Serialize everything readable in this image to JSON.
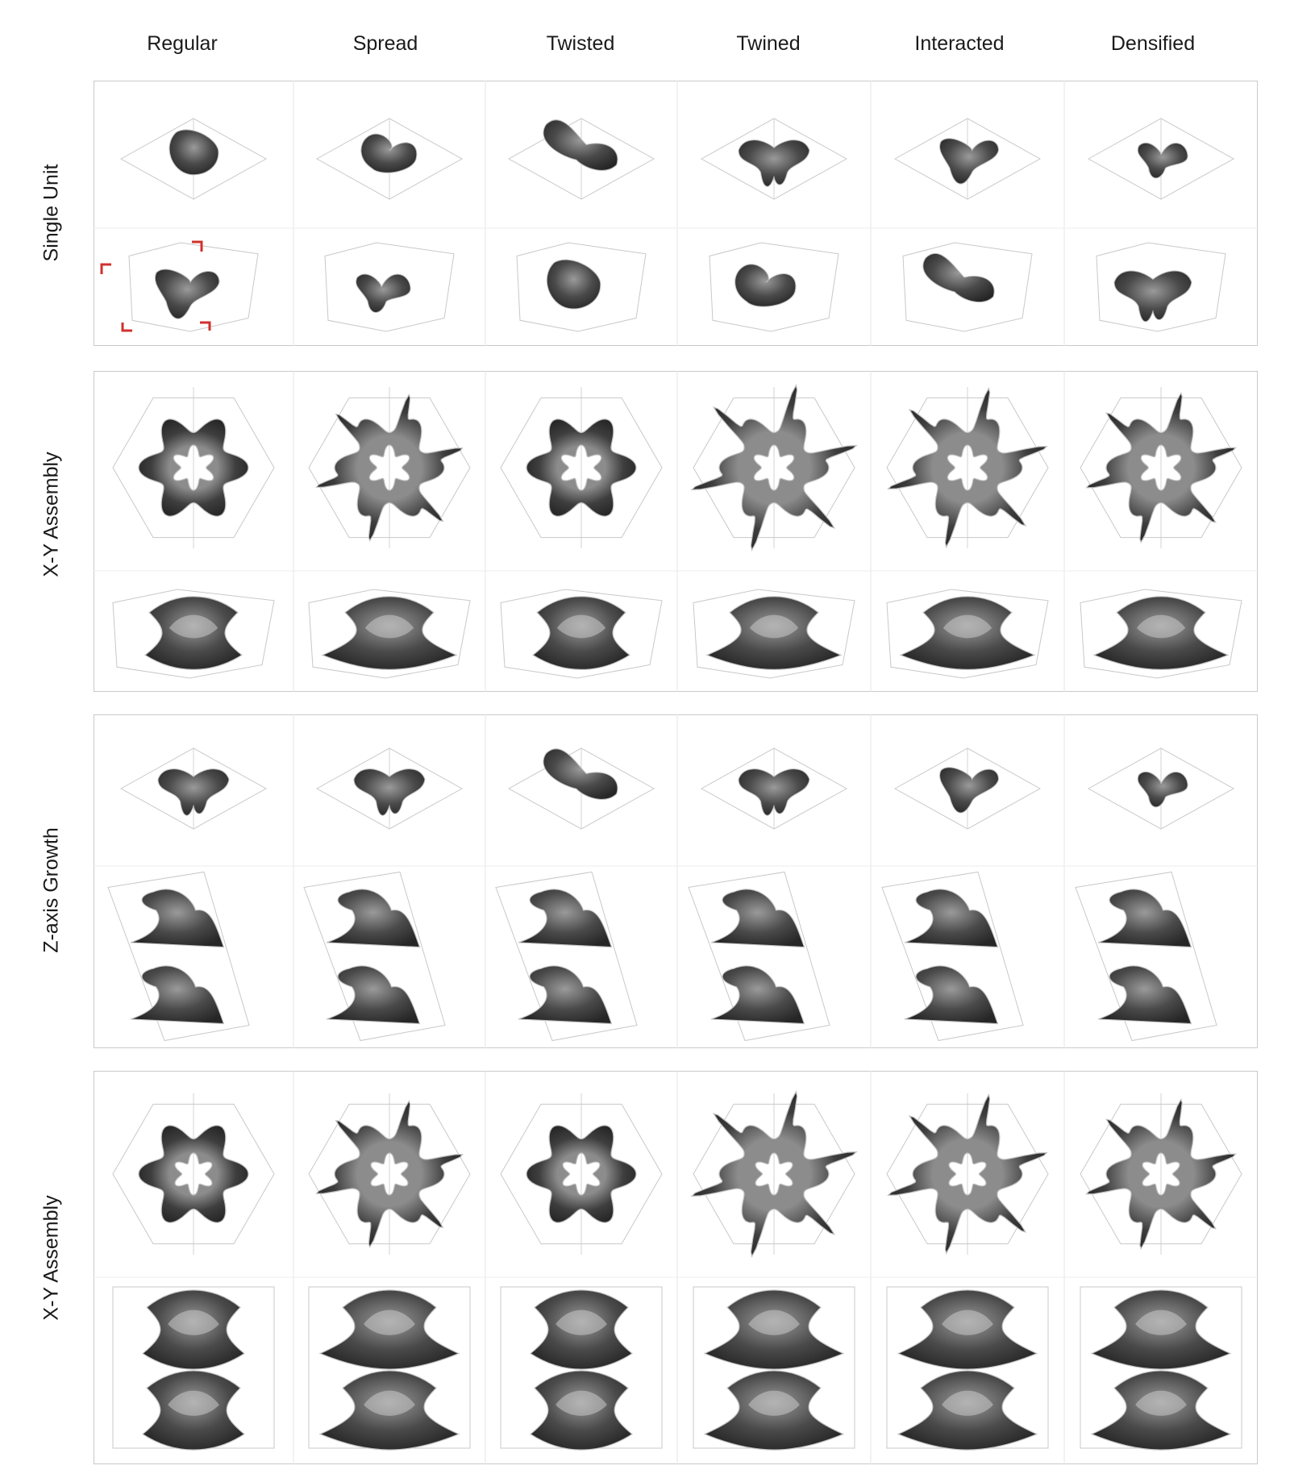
{
  "columns": [
    "Regular",
    "Spread",
    "Twisted",
    "Twined",
    "Interacted",
    "Densified"
  ],
  "rows": [
    "Single Unit",
    "X-Y  Assembly",
    "Z-axis Growth",
    "X-Y  Assembly"
  ],
  "colors": {
    "surface": "#3a3a3a",
    "highlight": "#9a9a9a",
    "wire": "#c8c8c8",
    "frame": "#c9c9c9",
    "marker": "#d0312d"
  }
}
